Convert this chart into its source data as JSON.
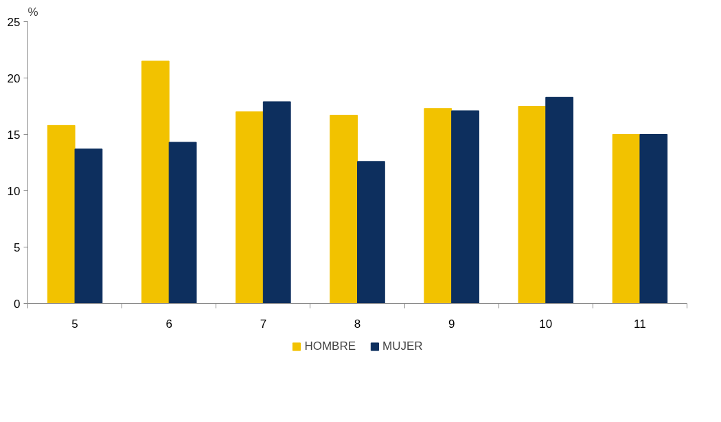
{
  "chart_data": {
    "type": "bar",
    "ylabel": "%",
    "categories": [
      "5",
      "6",
      "7",
      "8",
      "9",
      "10",
      "11"
    ],
    "series": [
      {
        "name": "HOMBRE",
        "color": "#f2c200",
        "values": [
          15.8,
          21.5,
          17.0,
          16.7,
          17.3,
          17.5,
          15.0
        ]
      },
      {
        "name": "MUJER",
        "color": "#0d2f5e",
        "values": [
          13.7,
          14.3,
          17.9,
          12.6,
          17.1,
          18.3,
          15.0
        ]
      }
    ],
    "ylim": [
      0,
      25
    ],
    "yticks": [
      0,
      5,
      10,
      15,
      20,
      25
    ],
    "grid": false,
    "legend": "bottom"
  }
}
